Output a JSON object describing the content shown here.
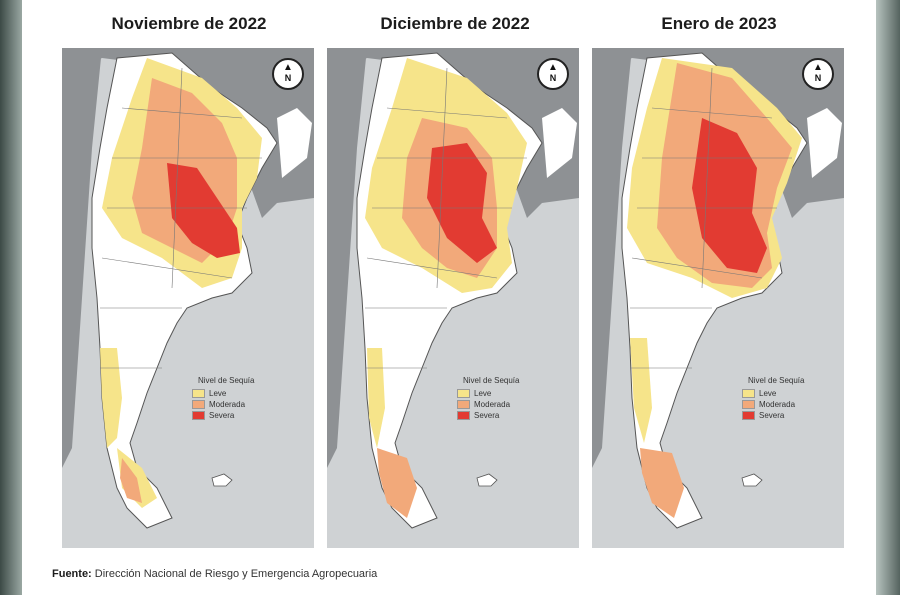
{
  "panels": [
    {
      "title": "Noviembre de 2022",
      "north": "N"
    },
    {
      "title": "Diciembre de 2022",
      "north": "N"
    },
    {
      "title": "Enero de 2023",
      "north": "N"
    }
  ],
  "legend": {
    "title": "Nivel de Sequía",
    "items": [
      {
        "label": "Leve",
        "color": "#f6e48a"
      },
      {
        "label": "Moderada",
        "color": "#f2a97a"
      },
      {
        "label": "Severa",
        "color": "#e23b32"
      }
    ]
  },
  "source": {
    "prefix": "Fuente:",
    "text": " Dirección Nacional de Riesgo y Emergencia Agropecuaria"
  },
  "colors": {
    "ocean": "#cfd2d4",
    "land_bg": "#8e9194",
    "argentina": "#ffffff",
    "border": "#555555"
  }
}
